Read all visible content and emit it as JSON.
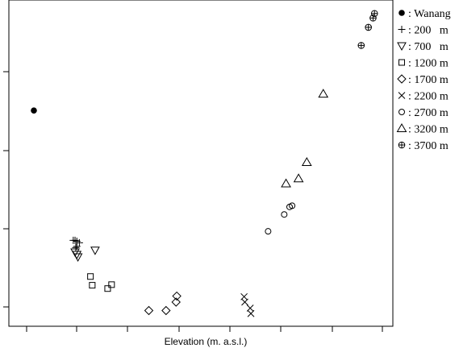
{
  "chart_data": {
    "type": "scatter",
    "title": "",
    "xlabel": "Elevation (m. a.s.l.)",
    "ylabel": "",
    "xlim": [
      0,
      1
    ],
    "ylim": [
      0,
      1
    ],
    "grid": false,
    "legend_position": "right",
    "series": [
      {
        "name": ": Wanang",
        "marker": "filled-circle",
        "points": [
          [
            0.036,
            0.676
          ]
        ]
      },
      {
        "name": ": 200   m",
        "marker": "plus",
        "points": [
          [
            0.146,
            0.245
          ],
          [
            0.151,
            0.245
          ],
          [
            0.156,
            0.242
          ],
          [
            0.156,
            0.225
          ],
          [
            0.163,
            0.237
          ],
          [
            0.153,
            0.221
          ]
        ]
      },
      {
        "name": ": 700   m",
        "marker": "triangle-down",
        "points": [
          [
            0.151,
            0.206
          ],
          [
            0.156,
            0.198
          ],
          [
            0.159,
            0.19
          ],
          [
            0.207,
            0.212
          ]
        ]
      },
      {
        "name": ": 1200 m",
        "marker": "square",
        "points": [
          [
            0.194,
            0.125
          ],
          [
            0.199,
            0.096
          ],
          [
            0.242,
            0.085
          ],
          [
            0.253,
            0.098
          ]
        ]
      },
      {
        "name": ": 1700 m",
        "marker": "diamond",
        "points": [
          [
            0.357,
            0.012
          ],
          [
            0.405,
            0.012
          ],
          [
            0.433,
            0.04
          ],
          [
            0.435,
            0.06
          ]
        ]
      },
      {
        "name": ": 2200 m",
        "marker": "cross",
        "points": [
          [
            0.623,
            0.058
          ],
          [
            0.625,
            0.04
          ],
          [
            0.64,
            0.02
          ],
          [
            0.642,
            0.002
          ]
        ]
      },
      {
        "name": ": 2700 m",
        "marker": "open-circle",
        "points": [
          [
            0.69,
            0.275
          ],
          [
            0.735,
            0.331
          ],
          [
            0.75,
            0.356
          ],
          [
            0.757,
            0.36
          ]
        ]
      },
      {
        "name": ": 3200 m",
        "marker": "triangle-up",
        "points": [
          [
            0.74,
            0.433
          ],
          [
            0.775,
            0.45
          ],
          [
            0.798,
            0.504
          ],
          [
            0.844,
            0.731
          ]
        ]
      },
      {
        "name": ": 3700 m",
        "marker": "crossed-circle",
        "points": [
          [
            0.95,
            0.892
          ],
          [
            0.97,
            0.952
          ],
          [
            0.983,
            0.983
          ],
          [
            0.987,
            0.998
          ]
        ]
      }
    ]
  }
}
